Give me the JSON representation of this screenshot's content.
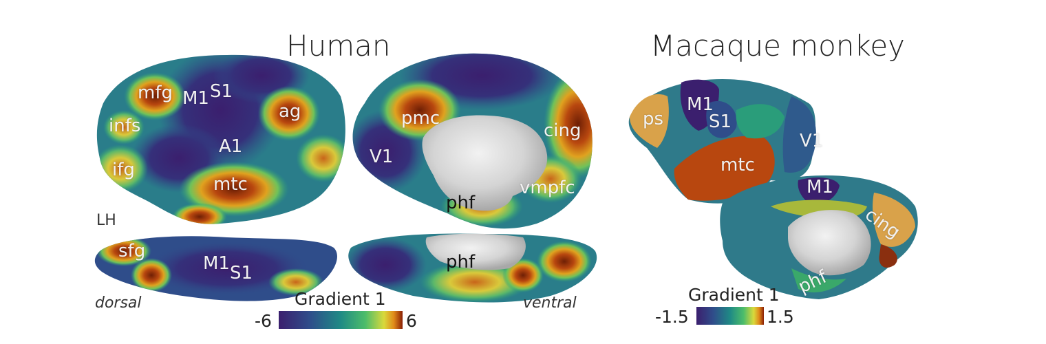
{
  "human": {
    "title": "Human",
    "hemisphere_label": "LH",
    "view_dorsal": "dorsal",
    "view_ventral": "ventral",
    "lateral_labels": {
      "mfg": "mfg",
      "m1": "M1",
      "s1": "S1",
      "ag": "ag",
      "infs": "infs",
      "a1": "A1",
      "ifg": "ifg",
      "mtc": "mtc"
    },
    "medial_labels": {
      "pmc": "pmc",
      "cing": "cing",
      "v1": "V1",
      "vmpfc": "vmpfc",
      "phf": "phf"
    },
    "dorsal_labels": {
      "sfg": "sfg",
      "m1": "M1",
      "s1": "S1"
    },
    "ventral_labels": {
      "phf": "phf"
    },
    "colorbar": {
      "title": "Gradient 1",
      "min": "-6",
      "max": "6"
    }
  },
  "macaque": {
    "title": "Macaque monkey",
    "lateral_labels": {
      "ps": "ps",
      "m1": "M1",
      "s1": "S1",
      "v1": "V1",
      "mtc": "mtc"
    },
    "medial_labels": {
      "m1": "M1",
      "cing": "cing",
      "phf": "phf"
    },
    "colorbar": {
      "title": "Gradient 1",
      "min": "-1.5",
      "max": "1.5"
    }
  },
  "colors": {
    "low": "#3b1f6e",
    "mid_blue": "#2b5d8c",
    "teal": "#1f8a85",
    "green": "#3aa86a",
    "yellow": "#d9c93b",
    "orange": "#c85a1a",
    "high": "#6e1f05",
    "wall": "#d8d8d8"
  }
}
